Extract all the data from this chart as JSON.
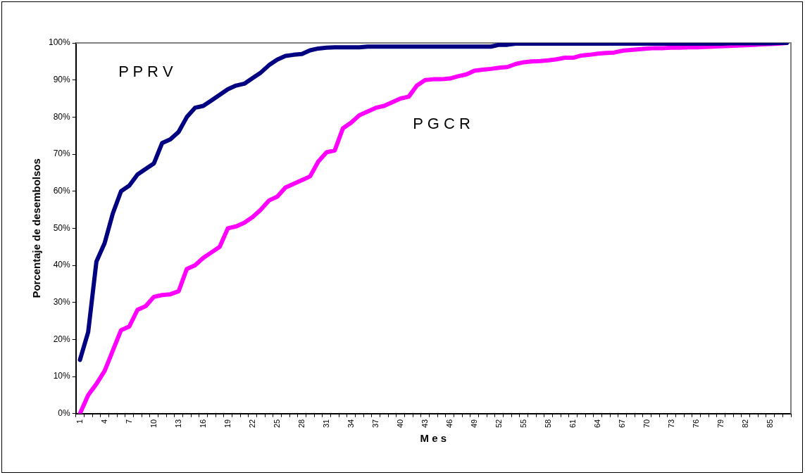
{
  "chart_data": {
    "type": "line",
    "xlabel": "M e s",
    "ylabel": "Porcentaje de desembolsos",
    "categories": [
      "1",
      null,
      null,
      "4",
      null,
      null,
      "7",
      null,
      null,
      "10",
      null,
      null,
      "13",
      null,
      null,
      "16",
      null,
      null,
      "19",
      null,
      null,
      "22",
      null,
      null,
      "25",
      null,
      null,
      "28",
      null,
      null,
      "31",
      null,
      null,
      "34",
      null,
      null,
      "37",
      null,
      null,
      "40",
      null,
      null,
      "43",
      null,
      null,
      "46",
      null,
      null,
      "49",
      null,
      null,
      "52",
      null,
      null,
      "55",
      null,
      null,
      "58",
      null,
      null,
      "61",
      null,
      null,
      "64",
      null,
      null,
      "67",
      null,
      null,
      "70",
      null,
      null,
      "73",
      null,
      null,
      "76",
      null,
      null,
      "79",
      null,
      null,
      "82",
      null,
      null,
      "85",
      null,
      null
    ],
    "series": [
      {
        "name": "P P R V",
        "color": "#000080",
        "values": [
          14.5,
          22,
          41,
          46,
          54,
          60,
          61.5,
          64.5,
          66,
          67.5,
          73,
          74,
          76,
          80,
          82.5,
          83,
          84.5,
          86,
          87.5,
          88.5,
          89,
          90.5,
          92,
          94,
          95.5,
          96.5,
          96.8,
          97,
          98,
          98.5,
          98.7,
          98.8,
          98.8,
          98.8,
          98.8,
          99,
          99,
          99,
          99,
          99,
          99,
          99,
          99,
          99,
          99,
          99,
          99,
          99,
          99,
          99,
          99,
          99.5,
          99.5,
          99.8,
          99.8,
          99.8,
          99.8,
          99.8,
          99.8,
          99.8,
          99.8,
          99.8,
          99.8,
          99.8,
          99.8,
          99.8,
          99.8,
          99.8,
          99.8,
          99.8,
          99.8,
          99.8,
          99.8,
          99.8,
          99.8,
          99.8,
          99.8,
          99.8,
          99.8,
          99.9,
          99.9,
          99.9,
          99.9,
          99.9,
          99.9,
          100,
          100
        ]
      },
      {
        "name": "P G C R",
        "color": "#ff00ff",
        "values": [
          0,
          5,
          8,
          11.5,
          17,
          22.5,
          23.5,
          28,
          29,
          31.5,
          32,
          32.2,
          33,
          39,
          40,
          42,
          43.5,
          45,
          50,
          50.5,
          51.5,
          53,
          55,
          57.5,
          58.5,
          61,
          62,
          63,
          64,
          68,
          70.5,
          71,
          77,
          78.5,
          80.5,
          81.5,
          82.5,
          83,
          84,
          85,
          85.5,
          88.5,
          90,
          90.2,
          90.2,
          90.4,
          91,
          91.5,
          92.5,
          92.8,
          93,
          93.3,
          93.5,
          94.3,
          94.8,
          95,
          95.1,
          95.3,
          95.6,
          96,
          96,
          96.6,
          96.8,
          97.1,
          97.3,
          97.4,
          97.9,
          98.1,
          98.3,
          98.5,
          98.6,
          98.6,
          98.7,
          98.7,
          98.8,
          98.8,
          98.9,
          99,
          99.1,
          99.2,
          99.3,
          99.4,
          99.5,
          99.6,
          99.7,
          99.8,
          100
        ]
      }
    ],
    "ylim": [
      0,
      100
    ],
    "yticks": [
      {
        "value": 0,
        "label": "0%"
      },
      {
        "value": 10,
        "label": "10%"
      },
      {
        "value": 20,
        "label": "20%"
      },
      {
        "value": 30,
        "label": "30%"
      },
      {
        "value": 40,
        "label": "40%"
      },
      {
        "value": 50,
        "label": "50%"
      },
      {
        "value": 60,
        "label": "60%"
      },
      {
        "value": 70,
        "label": "70%"
      },
      {
        "value": 80,
        "label": "80%"
      },
      {
        "value": 90,
        "label": "90%"
      },
      {
        "value": 100,
        "label": "100%"
      }
    ],
    "grid": false,
    "legend": false,
    "marker": "none",
    "line_style": "solid"
  }
}
